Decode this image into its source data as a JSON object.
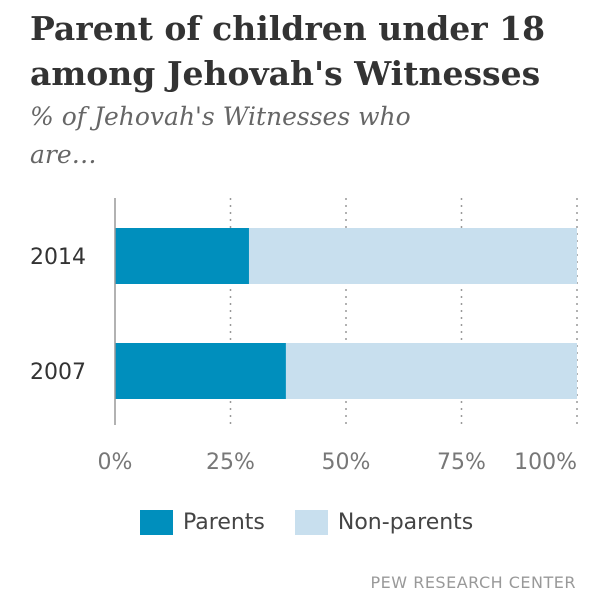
{
  "title": "Parent of children under 18 among Jehovah's Witnesses",
  "subtitle": "% of Jehovah's Witnesses who are…",
  "source": "PEW RESEARCH CENTER",
  "colors": {
    "parents": "#008fbd",
    "non_parents": "#c8dfee",
    "grid": "#999999",
    "axis": "#999999"
  },
  "chart_data": {
    "type": "bar",
    "orientation": "horizontal",
    "stacked": true,
    "categories": [
      "2014",
      "2007"
    ],
    "series": [
      {
        "name": "Parents",
        "values": [
          29,
          37
        ]
      },
      {
        "name": "Non-parents",
        "values": [
          71,
          63
        ]
      }
    ],
    "xlim": [
      0,
      100
    ],
    "ticks": [
      "0%",
      "25%",
      "50%",
      "75%",
      "100%"
    ],
    "tick_values": [
      0,
      25,
      50,
      75,
      100
    ],
    "grid": true,
    "legend": "bottom"
  }
}
